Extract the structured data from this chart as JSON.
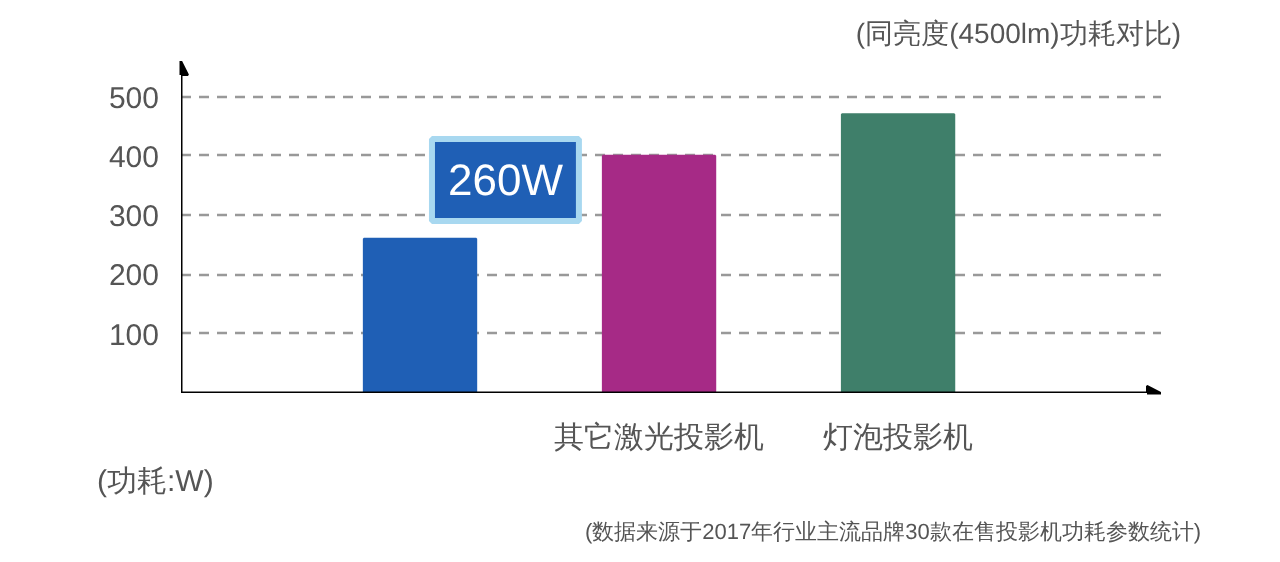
{
  "chart_data": {
    "type": "bar",
    "title": "(同亮度(4500lm)功耗对比)",
    "ylabel": "(功耗:W)",
    "categories": [
      null,
      "其它激光投影机",
      "灯泡投影机"
    ],
    "values": [
      260,
      400,
      470
    ],
    "colors": [
      "#1f5fb5",
      "#a62a86",
      "#3f7f6a"
    ],
    "value_labels": [
      "260W",
      null,
      null
    ],
    "ylim": [
      0,
      560
    ],
    "yticks": [
      100,
      200,
      300,
      400,
      500
    ],
    "grid": "y",
    "annotations": [
      "(数据来源于2017年行业主流品牌30款在售投影机功耗参数统计)"
    ]
  }
}
